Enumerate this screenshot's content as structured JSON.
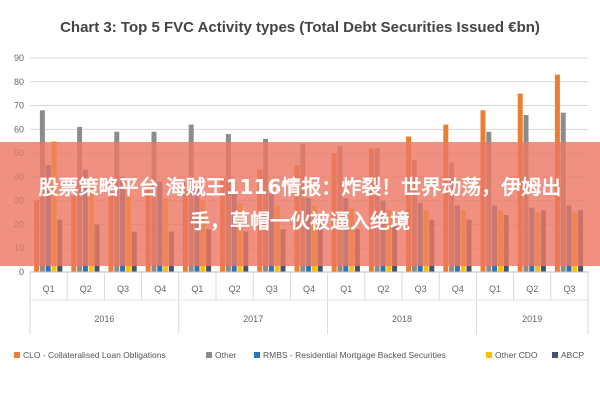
{
  "banner": {
    "text": "股票策略平台 海贼王1116情报：炸裂！世界动荡，伊姆出手，草帽一伙被逼入绝境"
  },
  "chart_data": {
    "type": "bar",
    "title": "Chart 3: Top 5 FVC Activity types (Total Debt Securities Issued €bn)",
    "xlabel": "",
    "ylabel": "",
    "ylim": [
      0,
      90
    ],
    "yticks": [
      0,
      10,
      20,
      30,
      40,
      50,
      60,
      70,
      80,
      90
    ],
    "grid": true,
    "legend": "bottom",
    "categories": [
      "Q1",
      "Q2",
      "Q3",
      "Q4",
      "Q1",
      "Q2",
      "Q3",
      "Q4",
      "Q1",
      "Q2",
      "Q3",
      "Q4",
      "Q1",
      "Q2",
      "Q3"
    ],
    "groups": [
      {
        "label": "2016",
        "count": 4
      },
      {
        "label": "2017",
        "count": 4
      },
      {
        "label": "2018",
        "count": 4
      },
      {
        "label": "2019",
        "count": 3
      }
    ],
    "series": [
      {
        "name": "CLO - Collateralised Loan Obligations",
        "color": "#ed7d31",
        "values": [
          30,
          32,
          34,
          35,
          38,
          40,
          43,
          45,
          50,
          52,
          57,
          62,
          68,
          75,
          83
        ]
      },
      {
        "name": "Other",
        "color": "#8c8c8c",
        "values": [
          68,
          61,
          59,
          59,
          62,
          58,
          56,
          54,
          53,
          52,
          47,
          46,
          59,
          66,
          67
        ]
      },
      {
        "name": "RMBS - Residential Mortgage Backed Securities",
        "color": "#2e75b6",
        "values": [
          45,
          43,
          40,
          38,
          36,
          34,
          33,
          31,
          31,
          30,
          29,
          28,
          28,
          27,
          28
        ]
      },
      {
        "name": "Other CDO",
        "color": "#ffc000",
        "values": [
          55,
          38,
          33,
          31,
          30,
          29,
          28,
          28,
          27,
          26,
          26,
          26,
          26,
          25,
          25
        ]
      },
      {
        "name": "ABCP",
        "color": "#44546a",
        "values": [
          22,
          20,
          17,
          17,
          18,
          17,
          18,
          20,
          18,
          20,
          22,
          22,
          24,
          26,
          26
        ]
      }
    ]
  }
}
